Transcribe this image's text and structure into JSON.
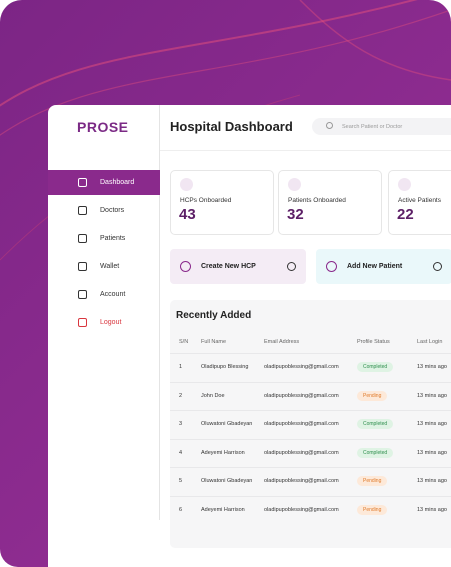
{
  "sidebar": {
    "logo": "PROSE",
    "nav": [
      "Dashboard",
      "Doctors",
      "Patients",
      "Wallet",
      "Account",
      "Logout"
    ]
  },
  "header": {
    "title": "Hospital Dashboard",
    "search_placeholder": "Search Patient or Doctor"
  },
  "stats": [
    {
      "label": "HCPs Onboarded",
      "value": "43"
    },
    {
      "label": "Patients Onboarded",
      "value": "32"
    },
    {
      "label": "Active Patients",
      "value": "22"
    }
  ],
  "actions": [
    "Create New HCP",
    "Add New Patient"
  ],
  "table": {
    "title": "Recently Added",
    "columns": [
      "S/N",
      "Full Name",
      "Email Address",
      "Profile Status",
      "Last Login"
    ],
    "rows": [
      [
        "1",
        "Oladipupo Blessing",
        "oladipupoblessing@gmail.com",
        "Completed",
        "13 mins ago"
      ],
      [
        "2",
        "John Doe",
        "oladipupoblessing@gmail.com",
        "Pending",
        "13 mins ago"
      ],
      [
        "3",
        "Oluwatoni Gbadeyan",
        "oladipupoblessing@gmail.com",
        "Completed",
        "13 mins ago"
      ],
      [
        "4",
        "Adeyemi Harrison",
        "oladipupoblessing@gmail.com",
        "Completed",
        "13 mins ago"
      ],
      [
        "5",
        "Oluwatoni Gbadeyan",
        "oladipupoblessing@gmail.com",
        "Pending",
        "13 mins ago"
      ],
      [
        "6",
        "Adeyemi Harrison",
        "oladipupoblessing@gmail.com",
        "Pending",
        "13 mins ago"
      ]
    ]
  }
}
